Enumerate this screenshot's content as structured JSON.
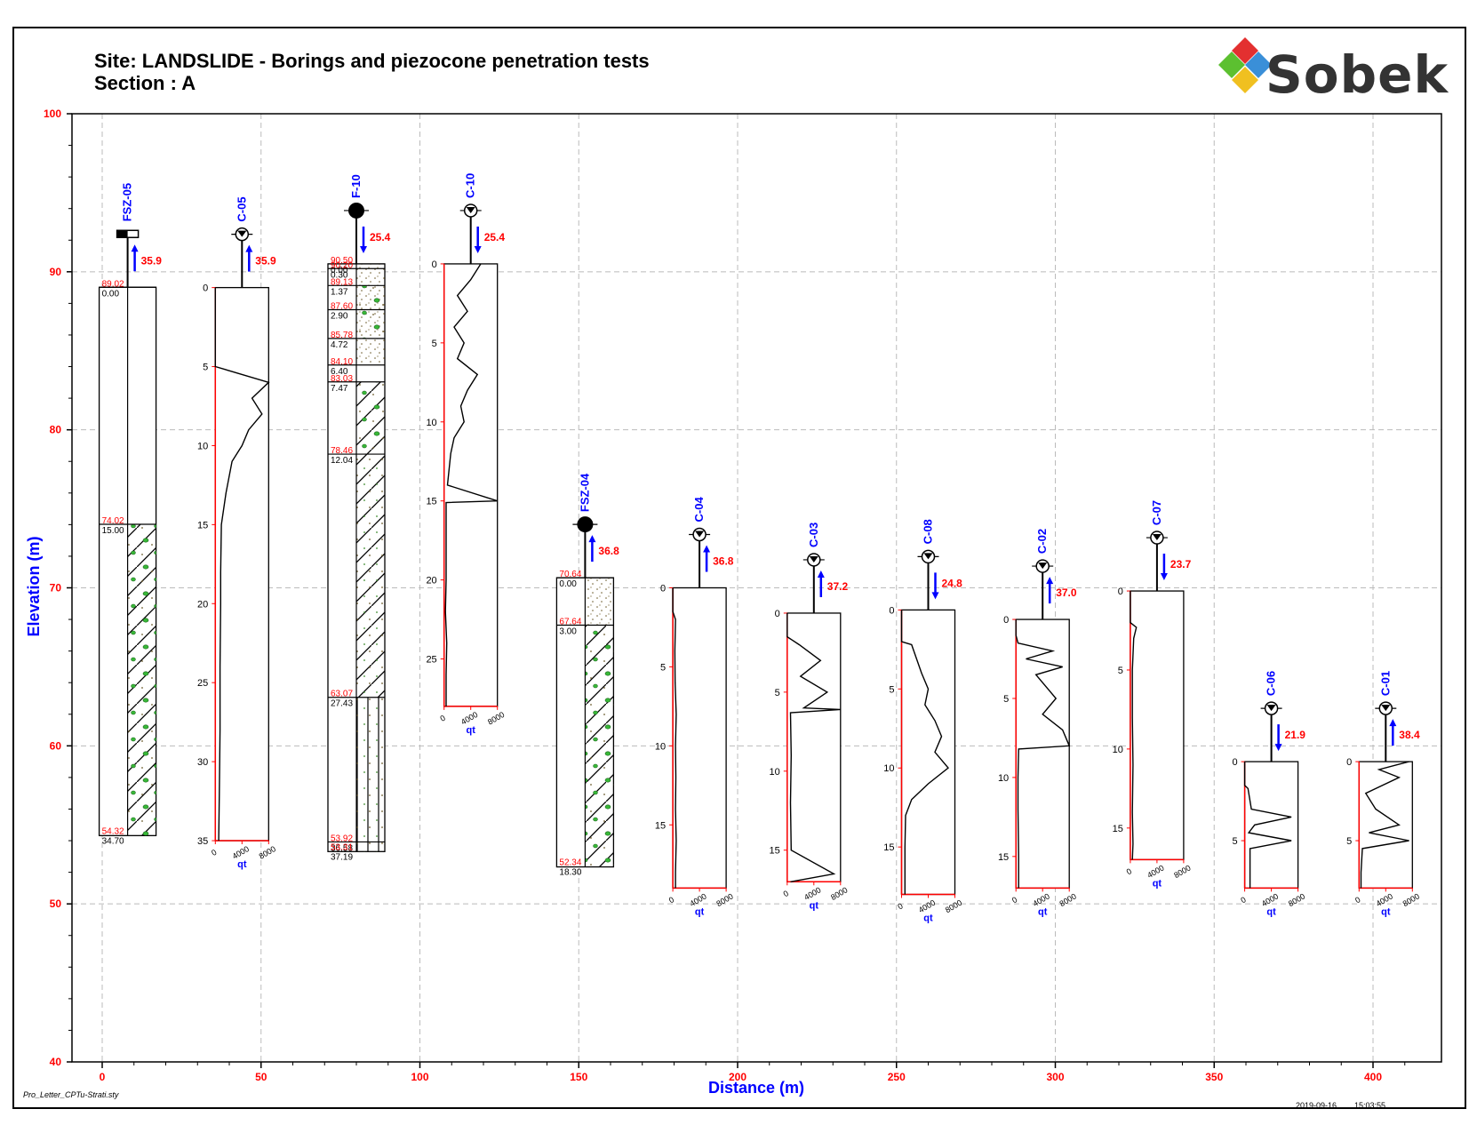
{
  "header": {
    "title_line1": "Site: LANDSLIDE  - Borings and piezocone penetration tests",
    "title_line2": "Section : A",
    "logo": "Sobek"
  },
  "footer": {
    "style_file": "Pro_Letter_CPTu-Strati.sty",
    "date": "2019-09-16",
    "time": "15:03:55"
  },
  "colors": {
    "axis_tick": "#ff0000",
    "label_blue": "#0000ff",
    "grid": "#bbbbbb"
  },
  "chart_data": {
    "type": "scatter",
    "xlabel": "Distance  (m)",
    "ylabel": "Elevation (m)",
    "xlim": [
      0,
      420
    ],
    "ylim": [
      40,
      100
    ],
    "x_ticks": [
      "0",
      "50",
      "100",
      "150",
      "200",
      "250",
      "300",
      "350",
      "400"
    ],
    "y_ticks": [
      "40",
      "50",
      "60",
      "70",
      "80",
      "90",
      "100"
    ],
    "grid": true,
    "boreholes": [
      {
        "name": "FSZ-05",
        "x": 8,
        "top": 89.02,
        "water": "35.9",
        "water_dir": "up",
        "head": "flag",
        "layers": [
          {
            "top": 89.02,
            "depth": "0.00",
            "pattern": "blank"
          },
          {
            "top": 74.02,
            "depth": "15.00",
            "pattern": "hatch-gravel"
          }
        ],
        "bottom": 54.32,
        "bottom_depth": "34.70"
      },
      {
        "name": "F-10",
        "x": 80,
        "top": 90.5,
        "water": "25.4",
        "water_dir": "down",
        "head": "circle",
        "layers": [
          {
            "top": 90.5,
            "depth": "0.00",
            "pattern": "sand"
          },
          {
            "top": 90.2,
            "depth": "0.30",
            "pattern": "sand"
          },
          {
            "top": 89.13,
            "depth": "1.37",
            "pattern": "sand-gravel"
          },
          {
            "top": 87.6,
            "depth": "2.90",
            "pattern": "sand-gravel"
          },
          {
            "top": 85.78,
            "depth": "4.72",
            "pattern": "sand"
          },
          {
            "top": 84.1,
            "depth": "6.40",
            "pattern": "blank"
          },
          {
            "top": 83.03,
            "depth": "7.47",
            "pattern": "hatch-gravel"
          },
          {
            "top": 78.46,
            "depth": "12.04",
            "pattern": "hatch-dots"
          },
          {
            "top": 63.07,
            "depth": "27.43",
            "pattern": "vert-dots"
          },
          {
            "top": 53.92,
            "depth": "36.58",
            "pattern": "vert-dots"
          }
        ],
        "bottom": 53.31,
        "bottom_depth": "37.19"
      },
      {
        "name": "FSZ-04",
        "x": 152,
        "top": 70.64,
        "water": "36.8",
        "water_dir": "up",
        "head": "circle",
        "layers": [
          {
            "top": 70.64,
            "depth": "0.00",
            "pattern": "sand"
          },
          {
            "top": 67.64,
            "depth": "3.00",
            "pattern": "hatch-gravel"
          }
        ],
        "bottom": 52.34,
        "bottom_depth": "18.30"
      }
    ],
    "cpts": [
      {
        "name": "C-05",
        "x": 44,
        "top": 89.0,
        "water": "35.9",
        "water_dir": "up",
        "maxd": 35,
        "ticks": [
          "0",
          "5",
          "10",
          "15",
          "20",
          "25",
          "30",
          "35"
        ],
        "profile": [
          [
            0,
            5
          ],
          [
            4,
            5
          ],
          [
            5,
            5
          ],
          [
            5.5,
            4000
          ],
          [
            6,
            8000
          ],
          [
            7,
            5500
          ],
          [
            8,
            7000
          ],
          [
            9,
            5000
          ],
          [
            10,
            4000
          ],
          [
            11,
            2500
          ],
          [
            13,
            1600
          ],
          [
            15,
            900
          ],
          [
            18,
            800
          ],
          [
            20,
            800
          ],
          [
            24,
            700
          ],
          [
            28,
            700
          ],
          [
            32,
            600
          ],
          [
            35,
            500
          ]
        ]
      },
      {
        "name": "C-10",
        "x": 116,
        "top": 90.5,
        "water": "25.4",
        "water_dir": "down",
        "maxd": 28,
        "ticks": [
          "0",
          "5",
          "10",
          "15",
          "20",
          "25"
        ],
        "profile": [
          [
            0,
            5500
          ],
          [
            1,
            4000
          ],
          [
            2,
            2000
          ],
          [
            3,
            3500
          ],
          [
            4,
            1500
          ],
          [
            5,
            3000
          ],
          [
            6,
            2000
          ],
          [
            7,
            5000
          ],
          [
            8,
            3500
          ],
          [
            9,
            2500
          ],
          [
            10,
            3000
          ],
          [
            11,
            1500
          ],
          [
            12,
            1000
          ],
          [
            14,
            500
          ],
          [
            15,
            8000
          ],
          [
            15.1,
            300
          ],
          [
            18,
            300
          ],
          [
            20,
            300
          ],
          [
            22,
            200
          ],
          [
            24,
            400
          ],
          [
            26,
            300
          ],
          [
            28,
            300
          ]
        ]
      },
      {
        "name": "C-04",
        "x": 188,
        "top": 70.0,
        "water": "36.8",
        "water_dir": "up",
        "maxd": 19,
        "ticks": [
          "0",
          "5",
          "10",
          "15"
        ],
        "profile": [
          [
            0,
            5
          ],
          [
            1.5,
            5
          ],
          [
            2,
            400
          ],
          [
            4,
            300
          ],
          [
            6,
            350
          ],
          [
            8,
            500
          ],
          [
            10,
            400
          ],
          [
            12,
            450
          ],
          [
            14,
            400
          ],
          [
            16,
            500
          ],
          [
            18,
            400
          ],
          [
            19,
            400
          ]
        ]
      },
      {
        "name": "C-03",
        "x": 224,
        "top": 68.4,
        "water": "37.2",
        "water_dir": "up",
        "maxd": 17,
        "ticks": [
          "0",
          "5",
          "10",
          "15"
        ],
        "profile": [
          [
            0,
            5
          ],
          [
            1.5,
            5
          ],
          [
            2,
            1800
          ],
          [
            3,
            5000
          ],
          [
            4,
            2000
          ],
          [
            5,
            6000
          ],
          [
            6,
            2500
          ],
          [
            6.1,
            8000
          ],
          [
            6.3,
            500
          ],
          [
            9,
            600
          ],
          [
            12,
            500
          ],
          [
            15,
            600
          ],
          [
            16.5,
            7000
          ],
          [
            17,
            500
          ]
        ]
      },
      {
        "name": "C-08",
        "x": 260,
        "top": 68.6,
        "water": "24.8",
        "water_dir": "down",
        "maxd": 18,
        "ticks": [
          "0",
          "5",
          "10",
          "15"
        ],
        "profile": [
          [
            0,
            5
          ],
          [
            2,
            5
          ],
          [
            2.2,
            1500
          ],
          [
            4,
            3000
          ],
          [
            5,
            4000
          ],
          [
            6,
            3500
          ],
          [
            7,
            5000
          ],
          [
            8,
            6000
          ],
          [
            9,
            5000
          ],
          [
            10,
            7000
          ],
          [
            11,
            4000
          ],
          [
            12,
            1500
          ],
          [
            13,
            600
          ],
          [
            15,
            500
          ],
          [
            17,
            500
          ],
          [
            18,
            500
          ]
        ]
      },
      {
        "name": "C-02",
        "x": 296,
        "top": 68.0,
        "water": "37.0",
        "water_dir": "up",
        "maxd": 17,
        "ticks": [
          "0",
          "5",
          "10",
          "15"
        ],
        "profile": [
          [
            0,
            5
          ],
          [
            1,
            5
          ],
          [
            1.5,
            300
          ],
          [
            2,
            5500
          ],
          [
            2.5,
            1500
          ],
          [
            3,
            7000
          ],
          [
            3.5,
            3000
          ],
          [
            4.5,
            5000
          ],
          [
            5,
            6000
          ],
          [
            6,
            4000
          ],
          [
            7,
            7000
          ],
          [
            8,
            8000
          ],
          [
            8.2,
            400
          ],
          [
            10,
            300
          ],
          [
            12,
            300
          ],
          [
            15,
            400
          ],
          [
            17,
            400
          ]
        ]
      },
      {
        "name": "C-07",
        "x": 332,
        "top": 69.8,
        "water": "23.7",
        "water_dir": "down",
        "maxd": 17,
        "ticks": [
          "0",
          "5",
          "10",
          "15"
        ],
        "profile": [
          [
            0,
            5
          ],
          [
            2,
            5
          ],
          [
            2.3,
            900
          ],
          [
            3,
            500
          ],
          [
            5,
            300
          ],
          [
            8,
            300
          ],
          [
            11,
            400
          ],
          [
            14,
            300
          ],
          [
            16,
            400
          ],
          [
            17,
            300
          ]
        ]
      },
      {
        "name": "C-06",
        "x": 368,
        "top": 59.0,
        "water": "21.9",
        "water_dir": "down",
        "maxd": 8,
        "ticks": [
          "0",
          "5"
        ],
        "profile": [
          [
            0,
            5
          ],
          [
            1.5,
            5
          ],
          [
            1.7,
            500
          ],
          [
            3,
            1000
          ],
          [
            3.5,
            7000
          ],
          [
            4,
            1500
          ],
          [
            4.5,
            600
          ],
          [
            5,
            7000
          ],
          [
            5.5,
            800
          ],
          [
            8,
            800
          ]
        ]
      },
      {
        "name": "C-01",
        "x": 404,
        "top": 59.0,
        "water": "38.4",
        "water_dir": "up",
        "maxd": 8,
        "ticks": [
          "0",
          "5"
        ],
        "profile": [
          [
            0,
            7500
          ],
          [
            0.5,
            3000
          ],
          [
            1,
            6000
          ],
          [
            2,
            1000
          ],
          [
            3,
            2500
          ],
          [
            4,
            6000
          ],
          [
            4.5,
            1500
          ],
          [
            5,
            7500
          ],
          [
            5.5,
            500
          ],
          [
            7,
            300
          ],
          [
            8,
            300
          ]
        ]
      }
    ],
    "qt_label": "qt",
    "qt_ticks": [
      "0",
      "4000",
      "8000"
    ]
  }
}
